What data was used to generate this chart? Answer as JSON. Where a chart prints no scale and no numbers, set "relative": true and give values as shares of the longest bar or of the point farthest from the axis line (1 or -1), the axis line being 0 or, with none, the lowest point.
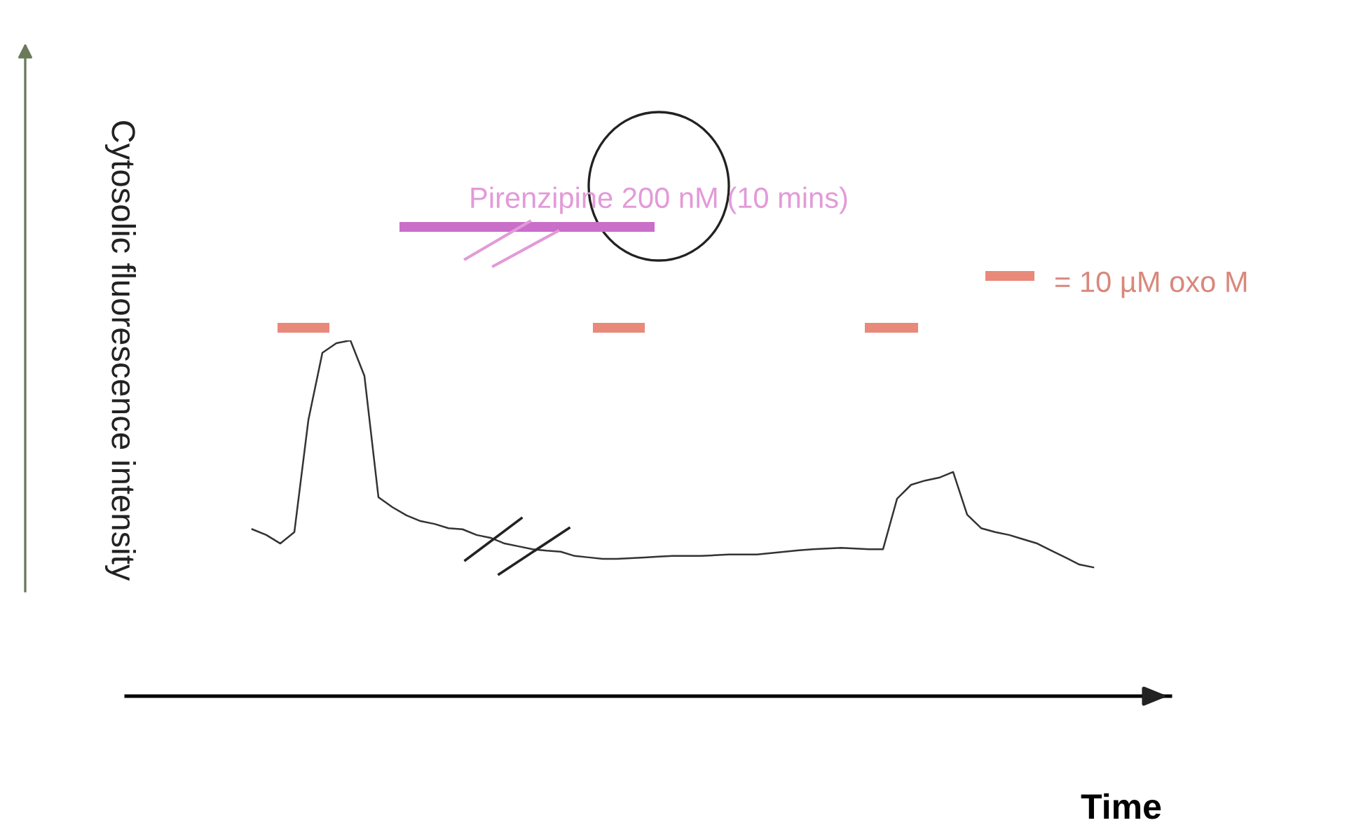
{
  "chart_data": {
    "type": "line",
    "relative": true,
    "xlabel": "Time",
    "ylabel": "Cytosolic fluorescence intensity",
    "color": "#333333",
    "tick_labels": false,
    "annotations": [
      "Pirenzipine 200 nM (10 mins)",
      "= 10 µM oxo M"
    ],
    "categories": [
      null,
      null,
      null,
      null,
      null,
      null,
      null,
      null,
      null,
      null,
      null,
      null,
      null,
      null,
      null,
      null,
      null,
      null,
      null,
      null,
      null,
      null,
      null,
      null,
      null,
      null,
      null,
      null,
      null,
      null,
      null,
      null,
      null,
      null,
      null,
      null,
      null,
      null,
      null,
      null,
      null,
      null,
      null,
      null,
      null,
      null,
      null,
      null,
      null,
      null,
      null,
      null,
      null,
      null,
      null,
      null,
      null,
      null,
      null,
      null,
      null
    ],
    "values": [
      0.469,
      0.453,
      0.429,
      0.461,
      0.776,
      0.965,
      0.992,
      1,
      0.9,
      0.559,
      0.531,
      0.508,
      0.492,
      0.484,
      0.472,
      0.469,
      0.453,
      0.445,
      0.429,
      0.421,
      0.413,
      0.409,
      0.406,
      0.394,
      0.39,
      0.386,
      0.386,
      0.388,
      0.39,
      0.392,
      0.394,
      0.394,
      0.394,
      0.396,
      0.398,
      0.398,
      0.398,
      0.402,
      0.406,
      0.41,
      0.413,
      0.415,
      0.417,
      0.415,
      0.413,
      0.413,
      0.555,
      0.594,
      0.606,
      0.614,
      0.63,
      0.51,
      0.472,
      0.461,
      0.453,
      0.441,
      0.429,
      0.409,
      0.39,
      0.37,
      0.362
    ]
  }
}
